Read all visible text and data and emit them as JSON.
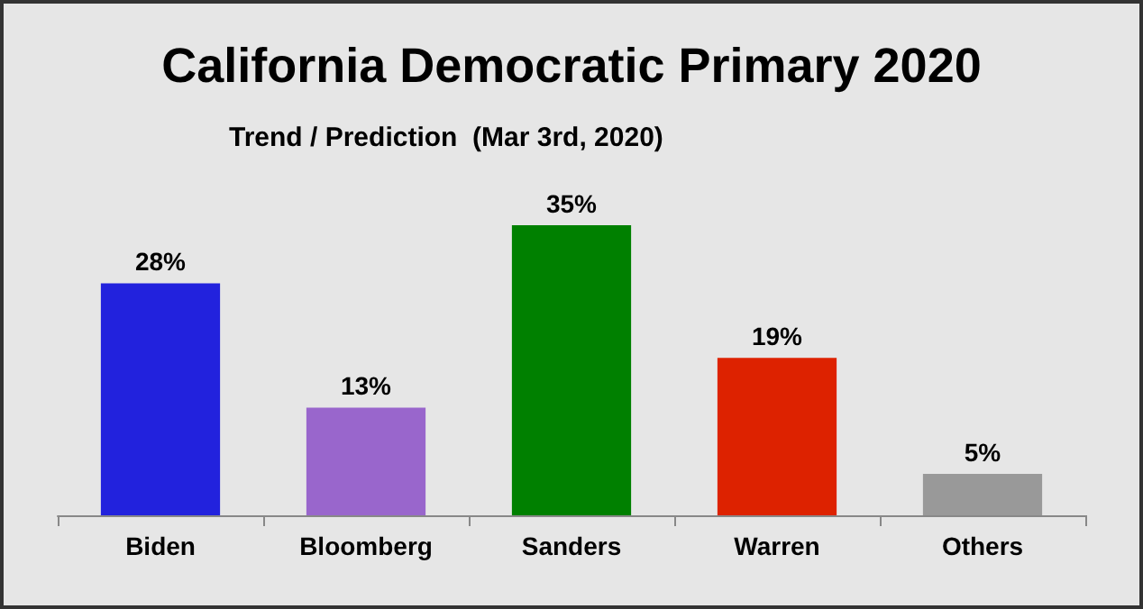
{
  "chart_data": {
    "type": "bar",
    "title": "California Democratic Primary 2020",
    "subtitle": "Trend / Prediction  (Mar 3rd, 2020)",
    "categories": [
      "Biden",
      "Bloomberg",
      "Sanders",
      "Warren",
      "Others"
    ],
    "values": [
      28,
      13,
      35,
      19,
      5
    ],
    "value_labels": [
      "28%",
      "13%",
      "35%",
      "19%",
      "5%"
    ],
    "colors": [
      "#2222dd",
      "#9966cc",
      "#008000",
      "#dd2200",
      "#999999"
    ]
  }
}
